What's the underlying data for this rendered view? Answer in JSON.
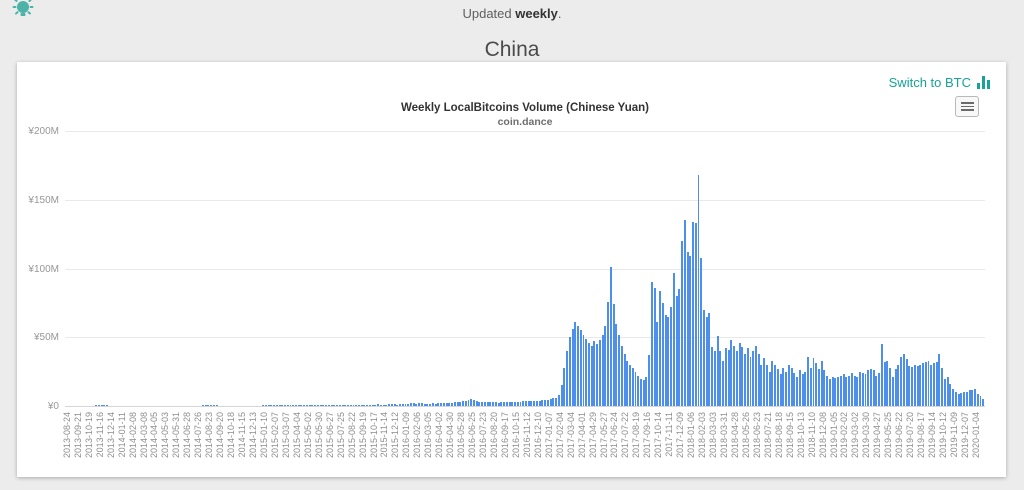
{
  "topbar": {
    "updated_prefix": "Updated ",
    "updated_bold": "weekly",
    "updated_suffix": "."
  },
  "page": {
    "heading": "China"
  },
  "card": {
    "switch_link_label": "Switch to BTC",
    "accent_teal": "#17a398",
    "menu_icon": "hamburger-menu"
  },
  "chart_data": {
    "type": "bar",
    "title": "Weekly LocalBitcoins Volume (Chinese Yuan)",
    "subtitle": "coin.dance",
    "bar_color": "#4d8fea",
    "grid": true,
    "legend": "none",
    "ylabel": "",
    "xlabel": "",
    "ylim_millions": [
      0,
      200
    ],
    "y_ticks": [
      "¥0",
      "¥50M",
      "¥100M",
      "¥150M",
      "¥200M"
    ],
    "x_unit": "week",
    "x_label_every_n_bars": 4,
    "x_labels": [
      "2013-08-24",
      "2013-09-21",
      "2013-10-19",
      "2013-11-16",
      "2013-12-14",
      "2014-01-11",
      "2014-02-08",
      "2014-03-08",
      "2014-04-05",
      "2014-05-03",
      "2014-05-31",
      "2014-06-28",
      "2014-07-26",
      "2014-08-23",
      "2014-09-20",
      "2014-10-18",
      "2014-11-15",
      "2014-12-13",
      "2015-01-10",
      "2015-02-07",
      "2015-03-07",
      "2015-04-04",
      "2015-05-02",
      "2015-05-30",
      "2015-06-27",
      "2015-07-25",
      "2015-08-22",
      "2015-09-19",
      "2015-10-17",
      "2015-11-14",
      "2015-12-12",
      "2016-01-09",
      "2016-02-06",
      "2016-03-05",
      "2016-04-02",
      "2016-04-30",
      "2016-05-28",
      "2016-06-25",
      "2016-07-23",
      "2016-08-20",
      "2016-09-17",
      "2016-10-15",
      "2016-11-12",
      "2016-12-10",
      "2017-01-07",
      "2017-02-04",
      "2017-03-04",
      "2017-04-01",
      "2017-04-29",
      "2017-05-27",
      "2017-06-24",
      "2017-07-22",
      "2017-08-19",
      "2017-09-16",
      "2017-10-14",
      "2017-11-11",
      "2017-12-09",
      "2018-01-06",
      "2018-02-03",
      "2018-03-03",
      "2018-03-31",
      "2018-04-28",
      "2018-05-26",
      "2018-06-23",
      "2018-07-21",
      "2018-08-18",
      "2018-09-15",
      "2018-10-13",
      "2018-11-10",
      "2018-12-08",
      "2019-01-05",
      "2019-02-02",
      "2019-03-02",
      "2019-03-30",
      "2019-04-27",
      "2019-05-25",
      "2019-06-22",
      "2019-07-20",
      "2019-08-17",
      "2019-09-14",
      "2019-10-12",
      "2019-11-09",
      "2019-12-07",
      "2020-01-04"
    ],
    "values_millions_cny": [
      0.1,
      0.1,
      0.1,
      0.15,
      0.1,
      0.1,
      0.15,
      0.2,
      0.2,
      0.25,
      0.3,
      0.5,
      0.65,
      0.7,
      0.55,
      0.45,
      0.35,
      0.3,
      0.3,
      0.25,
      0.25,
      0.3,
      0.25,
      0.2,
      0.25,
      0.3,
      0.25,
      0.2,
      0.2,
      0.25,
      0.2,
      0.2,
      0.25,
      0.2,
      0.2,
      0.2,
      0.25,
      0.2,
      0.2,
      0.2,
      0.2,
      0.25,
      0.2,
      0.2,
      0.2,
      0.2,
      0.25,
      0.3,
      0.3,
      0.35,
      0.4,
      0.45,
      0.5,
      0.45,
      0.4,
      0.4,
      0.35,
      0.35,
      0.3,
      0.35,
      0.3,
      0.3,
      0.35,
      0.3,
      0.3,
      0.35,
      0.3,
      0.3,
      0.3,
      0.35,
      0.3,
      0.35,
      0.4,
      0.4,
      0.45,
      0.4,
      0.45,
      0.5,
      0.45,
      0.5,
      0.55,
      0.5,
      0.55,
      0.6,
      0.55,
      0.6,
      0.65,
      0.6,
      0.65,
      0.6,
      0.65,
      0.7,
      0.65,
      0.7,
      0.75,
      0.7,
      0.75,
      0.7,
      0.75,
      0.8,
      0.75,
      0.8,
      0.85,
      0.8,
      0.85,
      0.9,
      0.85,
      0.9,
      0.95,
      0.9,
      1.0,
      1.1,
      1.0,
      1.1,
      1.2,
      1.1,
      1.0,
      1.1,
      1.2,
      1.3,
      1.2,
      1.1,
      1.2,
      1.3,
      1.5,
      1.8,
      2.2,
      2.0,
      1.8,
      2.3,
      2.0,
      1.8,
      1.6,
      1.7,
      1.9,
      1.8,
      2.0,
      2.2,
      2.1,
      2.3,
      2.2,
      2.4,
      2.6,
      2.8,
      3.0,
      3.4,
      3.8,
      4.2,
      4.8,
      4.2,
      3.6,
      3.2,
      3.0,
      2.8,
      2.6,
      2.8,
      3.0,
      2.7,
      2.5,
      2.8,
      3.0,
      2.8,
      2.6,
      2.9,
      3.1,
      3.0,
      3.2,
      3.4,
      3.6,
      3.8,
      4.0,
      3.8,
      3.6,
      3.9,
      4.2,
      4.5,
      4.5,
      5.0,
      5.5,
      6.0,
      8.0,
      15.0,
      28,
      40,
      50,
      56,
      61,
      58,
      55,
      52,
      49,
      46,
      44,
      47,
      45,
      48,
      52,
      58,
      76,
      101,
      74,
      60,
      52,
      44,
      38,
      33,
      30,
      28,
      25,
      22,
      20,
      19,
      21,
      37,
      90,
      86,
      61,
      84,
      75,
      66,
      65,
      72,
      97,
      80,
      85,
      120,
      135,
      112,
      109,
      134,
      133,
      168,
      108,
      70,
      65,
      68,
      43,
      40,
      51,
      40,
      33,
      42,
      41,
      48,
      44,
      40,
      46,
      43,
      38,
      42,
      36,
      40,
      44,
      38,
      30,
      35,
      30,
      25,
      33,
      30,
      27,
      23,
      28,
      25,
      30,
      28,
      24,
      21,
      26,
      23,
      25,
      36,
      28,
      35,
      31,
      27,
      33,
      26,
      22,
      20,
      21,
      20.5,
      21,
      22,
      23.5,
      21,
      22,
      24,
      22,
      21,
      25,
      24,
      23.5,
      26,
      27,
      26,
      22,
      24,
      45,
      32,
      33,
      28,
      21,
      27,
      30,
      36,
      37.5,
      34.5,
      29,
      28.5,
      30,
      29,
      30,
      31,
      32,
      33,
      30,
      31,
      32,
      38,
      28,
      20,
      21,
      16,
      12.5,
      10,
      9,
      9.5,
      10,
      10.5,
      11.5,
      12,
      12.5,
      9,
      7.5,
      5
    ]
  }
}
